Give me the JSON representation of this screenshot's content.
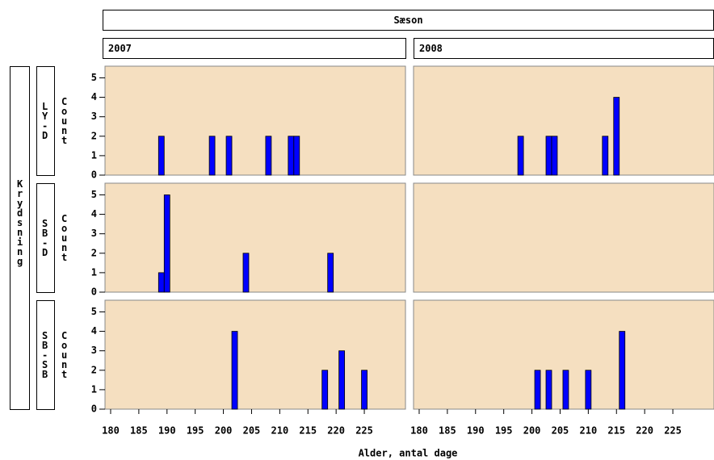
{
  "header": "Sæson",
  "row_header": "Krydsning",
  "columns": [
    "2007",
    "2008"
  ],
  "rows": [
    "LY-D",
    "SB-D",
    "SB-SB"
  ],
  "ylabel": "Count",
  "xlabel": "Alder, antal dage",
  "chart_data": [
    {
      "type": "bar",
      "x": [
        189,
        198,
        201,
        208,
        212,
        213
      ],
      "values": [
        2,
        2,
        2,
        2,
        2,
        2
      ],
      "color": "#0000ff",
      "xlim": [
        179,
        232.3
      ],
      "ylim": [
        0,
        5.6
      ],
      "yticks": [
        0,
        1,
        2,
        3,
        4,
        5
      ]
    },
    {
      "type": "bar",
      "x": [
        198,
        203,
        204,
        213,
        215
      ],
      "values": [
        2,
        2,
        2,
        2,
        4
      ],
      "color": "#0000ff",
      "xlim": [
        179,
        232.3
      ],
      "ylim": [
        0,
        5.6
      ]
    },
    {
      "type": "bar",
      "x": [
        189,
        190,
        204,
        219
      ],
      "values": [
        1,
        5,
        2,
        2
      ],
      "color": "#0000ff",
      "xlim": [
        179,
        232.3
      ],
      "ylim": [
        0,
        5.6
      ],
      "yticks": [
        0,
        1,
        2,
        3,
        4,
        5
      ]
    },
    {
      "type": "bar",
      "x": [],
      "values": [],
      "color": "#0000ff",
      "xlim": [
        179,
        232.3
      ],
      "ylim": [
        0,
        5.6
      ]
    },
    {
      "type": "bar",
      "x": [
        202,
        218,
        221,
        225
      ],
      "values": [
        4,
        2,
        3,
        2
      ],
      "color": "#0000ff",
      "xlim": [
        179,
        232.3
      ],
      "ylim": [
        0,
        5.6
      ],
      "yticks": [
        0,
        1,
        2,
        3,
        4,
        5
      ],
      "xticks": [
        180,
        185,
        190,
        195,
        200,
        205,
        210,
        215,
        220,
        225
      ]
    },
    {
      "type": "bar",
      "x": [
        201,
        203,
        206,
        210,
        216
      ],
      "values": [
        2,
        2,
        2,
        2,
        4
      ],
      "color": "#0000ff",
      "xlim": [
        179,
        232.3
      ],
      "ylim": [
        0,
        5.6
      ],
      "xticks": [
        180,
        185,
        190,
        195,
        200,
        205,
        210,
        215,
        220,
        225
      ]
    }
  ]
}
